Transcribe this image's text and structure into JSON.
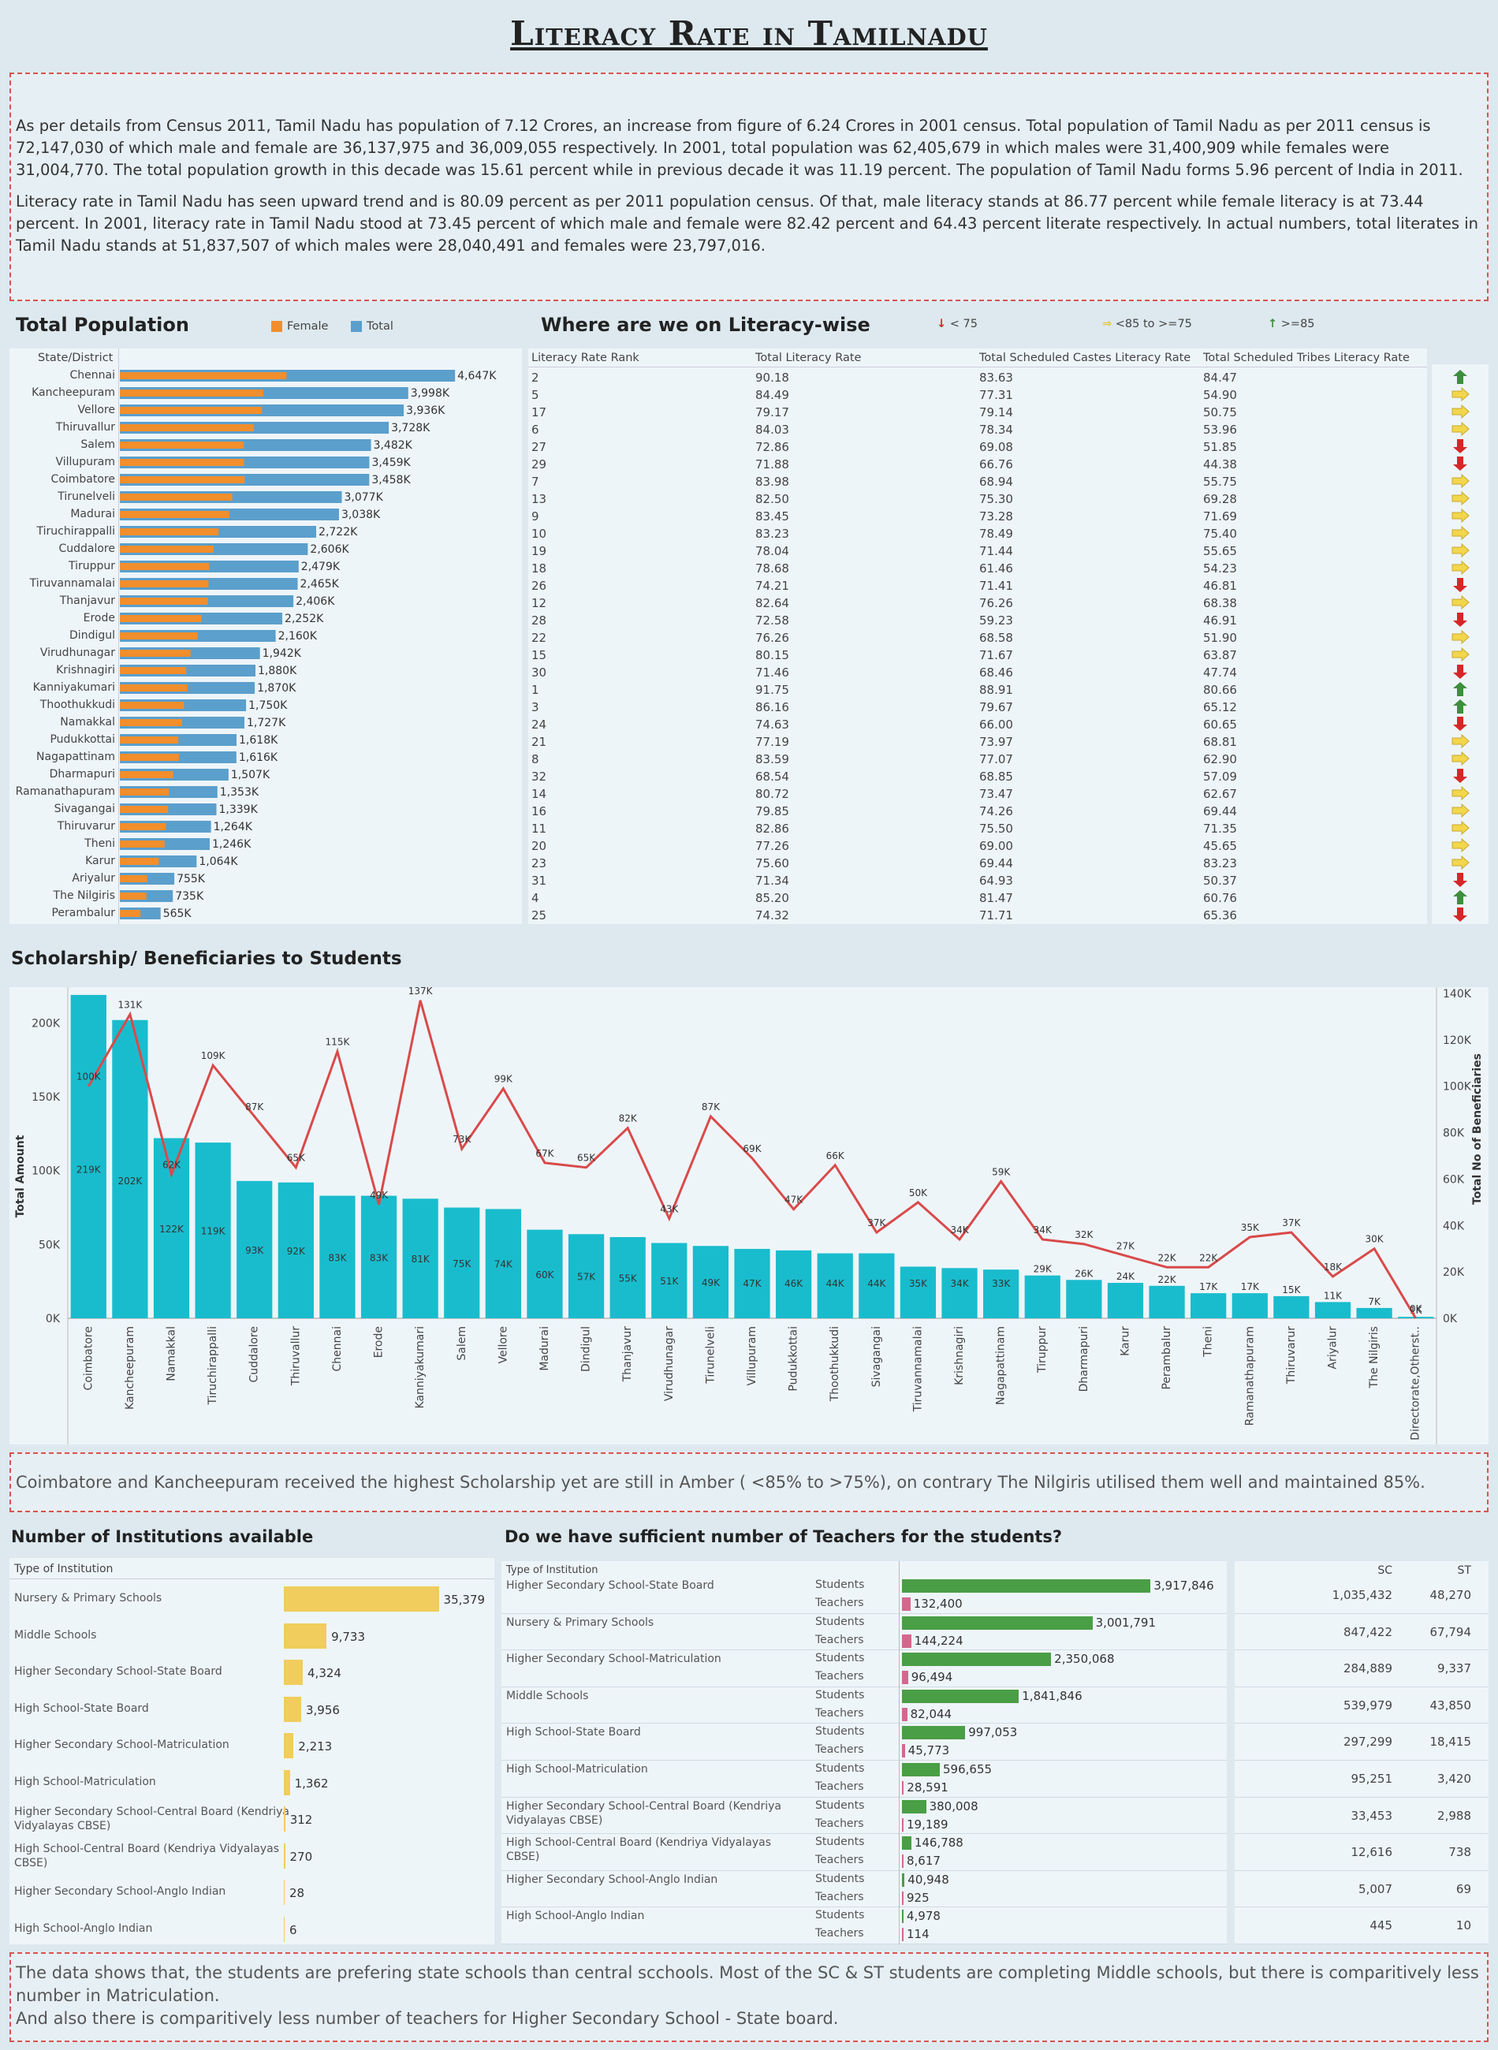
{
  "title": "Literacy Rate in Tamilnadu",
  "intro": [
    "As per details from Census 2011, Tamil Nadu has population of 7.12 Crores, an increase from figure of 6.24 Crores in 2001 census. Total population of Tamil Nadu as per 2011 census is 72,147,030 of which male and female are 36,137,975 and 36,009,055 respectively. In 2001, total population was 62,405,679 in which males were 31,400,909 while females were 31,004,770. The total population growth in this decade was 15.61 percent while in previous decade it was 11.19 percent. The population of Tamil Nadu forms 5.96 percent of India in 2011.",
    "Literacy rate in Tamil Nadu has seen upward trend and is 80.09 percent as per 2011 population census. Of that, male literacy stands at 86.77 percent while female literacy is at 73.44 percent. In 2001, literacy rate in Tamil Nadu stood at 73.45 percent of which male and female were 82.42 percent and 64.43 percent literate respectively. In actual numbers, total literates in Tamil Nadu stands at 51,837,507 of which males were 28,040,491 and females were 23,797,016."
  ],
  "population": {
    "title": "Total Population",
    "legend": {
      "female": "Female",
      "total": "Total"
    },
    "column_header": "State/District",
    "colors": {
      "female": "#f28e2b",
      "total": "#5b9fcc"
    }
  },
  "literacy": {
    "title": "Where are we on Literacy-wise",
    "legend": {
      "low": "< 75",
      "mid": "<85 to >=75",
      "high": ">=85"
    },
    "headers": [
      "Literacy Rate Rank",
      "Total Literacy Rate",
      "Total Scheduled Castes Literacy Rate",
      "Total Scheduled Tribes Literacy Rate"
    ],
    "colors": {
      "low": "#d62728",
      "mid": "#f2d64b",
      "high": "#3e8e3e"
    }
  },
  "scholarship": {
    "title": "Scholarship/ Beneficiaries to Students",
    "left_axis_label": "Total Amount",
    "right_axis_label": "Total No of Beneficiaries",
    "colors": {
      "bar": "#19bccd",
      "line": "#d94a4a"
    }
  },
  "scholarship_note": "Coimbatore and Kancheepuram received the highest Scholarship yet are still in Amber ( <85% to >75%), on contrary The Nilgiris utilised them well and maintained 85%.",
  "institutions": {
    "title": "Number of Institutions available",
    "column_header": "Type of Institution",
    "color": "#f0cd5c"
  },
  "teachers": {
    "title": "Do we have sufficient number of Teachers for the students?",
    "column_header": "Type of Institution",
    "students_label": "Students",
    "teachers_label": "Teachers",
    "sc_header": "SC",
    "st_header": "ST",
    "colors": {
      "students": "#4a9e46",
      "teachers": "#d4688c"
    }
  },
  "bottom_note": [
    "The data shows that, the students are prefering state schools than central scchools. Most of the SC & ST students are completing Middle schools, but there is comparitively less number in Matriculation.",
    "And also there is comparitively less number of teachers for Higher Secondary School - State board."
  ],
  "chart_data": [
    {
      "type": "bar",
      "title": "Total Population",
      "categories": [
        "Chennai",
        "Kancheepuram",
        "Vellore",
        "Thiruvallur",
        "Salem",
        "Villupuram",
        "Coimbatore",
        "Tirunelveli",
        "Madurai",
        "Tiruchirappalli",
        "Cuddalore",
        "Tiruppur",
        "Tiruvannamalai",
        "Thanjavur",
        "Erode",
        "Dindigul",
        "Virudhunagar",
        "Krishnagiri",
        "Kanniyakumari",
        "Thoothukkudi",
        "Namakkal",
        "Pudukkottai",
        "Nagapattinam",
        "Dharmapuri",
        "Ramanathapuram",
        "Sivagangai",
        "Thiruvarur",
        "Theni",
        "Karur",
        "Ariyalur",
        "The Nilgiris",
        "Perambalur"
      ],
      "series": [
        {
          "name": "Total",
          "values": [
            4647,
            3998,
            3936,
            3728,
            3482,
            3459,
            3458,
            3077,
            3038,
            2722,
            2606,
            2479,
            2465,
            2406,
            2252,
            2160,
            1942,
            1880,
            1870,
            1750,
            1727,
            1618,
            1616,
            1507,
            1353,
            1339,
            1264,
            1246,
            1064,
            755,
            735,
            565
          ],
          "labels": [
            "4,647K",
            "3,998K",
            "3,936K",
            "3,728K",
            "3,482K",
            "3,459K",
            "3,458K",
            "3,077K",
            "3,038K",
            "2,722K",
            "2,606K",
            "2,479K",
            "2,465K",
            "2,406K",
            "2,252K",
            "2,160K",
            "1,942K",
            "1,880K",
            "1,870K",
            "1,750K",
            "1,727K",
            "1,618K",
            "1,616K",
            "1,507K",
            "1,353K",
            "1,339K",
            "1,264K",
            "1,246K",
            "1,064K",
            "755K",
            "735K",
            "565K"
          ]
        },
        {
          "name": "Female",
          "values": [
            2310,
            1990,
            1970,
            1860,
            1720,
            1720,
            1730,
            1560,
            1520,
            1370,
            1300,
            1240,
            1230,
            1220,
            1130,
            1080,
            980,
            920,
            940,
            890,
            860,
            810,
            820,
            740,
            680,
            670,
            640,
            620,
            540,
            380,
            370,
            285
          ]
        }
      ]
    },
    {
      "type": "table",
      "title": "Where are we on Literacy-wise",
      "columns": [
        "Literacy Rate Rank",
        "Total Literacy Rate",
        "Total Scheduled Castes Literacy Rate",
        "Total Scheduled Tribes Literacy Rate"
      ],
      "rows": [
        [
          "2",
          "90.18",
          "83.63",
          "84.47"
        ],
        [
          "5",
          "84.49",
          "77.31",
          "54.90"
        ],
        [
          "17",
          "79.17",
          "79.14",
          "50.75"
        ],
        [
          "6",
          "84.03",
          "78.34",
          "53.96"
        ],
        [
          "27",
          "72.86",
          "69.08",
          "51.85"
        ],
        [
          "29",
          "71.88",
          "66.76",
          "44.38"
        ],
        [
          "7",
          "83.98",
          "68.94",
          "55.75"
        ],
        [
          "13",
          "82.50",
          "75.30",
          "69.28"
        ],
        [
          "9",
          "83.45",
          "73.28",
          "71.69"
        ],
        [
          "10",
          "83.23",
          "78.49",
          "75.40"
        ],
        [
          "19",
          "78.04",
          "71.44",
          "55.65"
        ],
        [
          "18",
          "78.68",
          "61.46",
          "54.23"
        ],
        [
          "26",
          "74.21",
          "71.41",
          "46.81"
        ],
        [
          "12",
          "82.64",
          "76.26",
          "68.38"
        ],
        [
          "28",
          "72.58",
          "59.23",
          "46.91"
        ],
        [
          "22",
          "76.26",
          "68.58",
          "51.90"
        ],
        [
          "15",
          "80.15",
          "71.67",
          "63.87"
        ],
        [
          "30",
          "71.46",
          "68.46",
          "47.74"
        ],
        [
          "1",
          "91.75",
          "88.91",
          "80.66"
        ],
        [
          "3",
          "86.16",
          "79.67",
          "65.12"
        ],
        [
          "24",
          "74.63",
          "66.00",
          "60.65"
        ],
        [
          "21",
          "77.19",
          "73.97",
          "68.81"
        ],
        [
          "8",
          "83.59",
          "77.07",
          "62.90"
        ],
        [
          "32",
          "68.54",
          "68.85",
          "57.09"
        ],
        [
          "14",
          "80.72",
          "73.47",
          "62.67"
        ],
        [
          "16",
          "79.85",
          "74.26",
          "69.44"
        ],
        [
          "11",
          "82.86",
          "75.50",
          "71.35"
        ],
        [
          "20",
          "77.26",
          "69.00",
          "45.65"
        ],
        [
          "23",
          "75.60",
          "69.44",
          "83.23"
        ],
        [
          "31",
          "71.34",
          "64.93",
          "50.37"
        ],
        [
          "4",
          "85.20",
          "81.47",
          "60.76"
        ],
        [
          "25",
          "74.32",
          "71.71",
          "65.36"
        ]
      ]
    },
    {
      "type": "bar",
      "title": "Scholarship/ Beneficiaries to Students",
      "categories": [
        "Coimbatore",
        "Kancheepuram",
        "Namakkal",
        "Tiruchirappalli",
        "Cuddalore",
        "Thiruvallur",
        "Chennai",
        "Erode",
        "Kanniyakumari",
        "Salem",
        "Vellore",
        "Madurai",
        "Dindigul",
        "Thanjavur",
        "Virudhunagar",
        "Tirunelveli",
        "Villupuram",
        "Pudukkottai",
        "Thoothukkudi",
        "Sivagangai",
        "Tiruvannamalai",
        "Krishnagiri",
        "Nagapattinam",
        "Tiruppur",
        "Dharmapuri",
        "Karur",
        "Perambalur",
        "Theni",
        "Ramanathapuram",
        "Thiruvarur",
        "Ariyalur",
        "The Nilgiris",
        "Directorate,Otherst.."
      ],
      "series": [
        {
          "name": "Total Amount",
          "values": [
            219,
            202,
            122,
            119,
            93,
            92,
            83,
            83,
            81,
            75,
            74,
            60,
            57,
            55,
            51,
            49,
            47,
            46,
            44,
            44,
            35,
            34,
            33,
            29,
            26,
            24,
            22,
            17,
            17,
            15,
            11,
            7,
            1
          ],
          "labels": [
            "219K",
            "202K",
            "122K",
            "119K",
            "93K",
            "92K",
            "83K",
            "83K",
            "81K",
            "75K",
            "74K",
            "60K",
            "57K",
            "55K",
            "51K",
            "49K",
            "47K",
            "46K",
            "44K",
            "44K",
            "35K",
            "34K",
            "33K",
            "29K",
            "26K",
            "24K",
            "22K",
            "17K",
            "17K",
            "15K",
            "11K",
            "7K",
            "1K"
          ]
        },
        {
          "name": "Total No of Beneficiaries",
          "values": [
            100,
            131,
            62,
            109,
            87,
            65,
            115,
            49,
            137,
            73,
            99,
            67,
            65,
            82,
            43,
            87,
            69,
            47,
            66,
            37,
            50,
            34,
            59,
            34,
            32,
            27,
            22,
            22,
            35,
            37,
            18,
            30,
            0
          ],
          "labels": [
            "100K",
            "131K",
            "62K",
            "109K",
            "87K",
            "65K",
            "115K",
            "49K",
            "137K",
            "73K",
            "99K",
            "67K",
            "65K",
            "82K",
            "43K",
            "87K",
            "69K",
            "47K",
            "66K",
            "37K",
            "50K",
            "34K",
            "59K",
            "34K",
            "32K",
            "27K",
            "22K",
            "22K",
            "35K",
            "37K",
            "18K",
            "30K",
            "0K"
          ]
        }
      ],
      "ylim": [
        0,
        220
      ],
      "y2lim": [
        0,
        140
      ],
      "yticks": [
        "0K",
        "50K",
        "100K",
        "150K",
        "200K"
      ],
      "y2ticks": [
        "0K",
        "20K",
        "40K",
        "60K",
        "80K",
        "100K",
        "120K",
        "140K"
      ]
    },
    {
      "type": "bar",
      "title": "Number of Institutions available",
      "categories": [
        "Nursery & Primary Schools",
        "Middle Schools",
        "Higher Secondary School-State Board",
        "High School-State Board",
        "Higher Secondary School-Matriculation",
        "High School-Matriculation",
        "Higher Secondary School-Central Board (Kendriya Vidyalayas CBSE)",
        "High School-Central Board (Kendriya Vidyalayas CBSE)",
        "Higher Secondary School-Anglo Indian",
        "High School-Anglo Indian"
      ],
      "values": [
        35379,
        9733,
        4324,
        3956,
        2213,
        1362,
        312,
        270,
        28,
        6
      ],
      "labels": [
        "35,379",
        "9,733",
        "4,324",
        "3,956",
        "2,213",
        "1,362",
        "312",
        "270",
        "28",
        "6"
      ]
    },
    {
      "type": "bar",
      "title": "Do we have sufficient number of Teachers for the students?",
      "categories": [
        "Higher Secondary School-State Board",
        "Nursery & Primary Schools",
        "Higher Secondary School-Matriculation",
        "Middle Schools",
        "High School-State Board",
        "High School-Matriculation",
        "Higher Secondary School-Central Board (Kendriya Vidyalayas CBSE)",
        "High School-Central Board (Kendriya Vidyalayas CBSE)",
        "Higher Secondary School-Anglo Indian",
        "High School-Anglo Indian"
      ],
      "series": [
        {
          "name": "Students",
          "values": [
            3917846,
            3001791,
            2350068,
            1841846,
            997053,
            596655,
            380008,
            146788,
            40948,
            4978
          ],
          "labels": [
            "3,917,846",
            "3,001,791",
            "2,350,068",
            "1,841,846",
            "997,053",
            "596,655",
            "380,008",
            "146,788",
            "40,948",
            "4,978"
          ]
        },
        {
          "name": "Teachers",
          "values": [
            132400,
            144224,
            96494,
            82044,
            45773,
            28591,
            19189,
            8617,
            925,
            114
          ],
          "labels": [
            "132,400",
            "144,224",
            "96,494",
            "82,044",
            "45,773",
            "28,591",
            "19,189",
            "8,617",
            "925",
            "114"
          ]
        },
        {
          "name": "SC",
          "labels": [
            "1,035,432",
            "847,422",
            "284,889",
            "539,979",
            "297,299",
            "95,251",
            "33,453",
            "12,616",
            "5,007",
            "445"
          ]
        },
        {
          "name": "ST",
          "labels": [
            "48,270",
            "67,794",
            "9,337",
            "43,850",
            "18,415",
            "3,420",
            "2,988",
            "738",
            "69",
            "10"
          ]
        }
      ]
    }
  ]
}
